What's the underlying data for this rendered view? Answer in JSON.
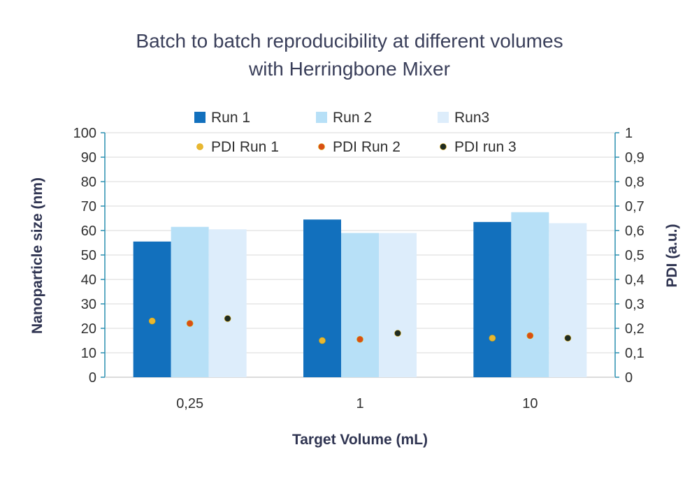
{
  "chart_data": {
    "type": "bar",
    "title_line1": "Batch to batch reproducibility at different volumes",
    "title_line2": "with Herringbone Mixer",
    "xlabel": "Target Volume (mL)",
    "ylabel": "Nanoparticle size (nm)",
    "y2label": "PDI (a.u.)",
    "categories": [
      "0,25",
      "1",
      "10"
    ],
    "ylim": [
      0,
      100
    ],
    "y2lim": [
      0,
      1
    ],
    "yticks": [
      "0",
      "10",
      "20",
      "30",
      "40",
      "50",
      "60",
      "70",
      "80",
      "90",
      "100"
    ],
    "y2ticks": [
      "0",
      "0,1",
      "0,2",
      "0,3",
      "0,4",
      "0,5",
      "0,6",
      "0,7",
      "0,8",
      "0,9",
      "1"
    ],
    "grid": true,
    "legend_position": "top",
    "series": [
      {
        "name": "Run 1",
        "kind": "bar",
        "axis": "left",
        "color": "#1270bd",
        "values": [
          55.5,
          64.5,
          63.5
        ]
      },
      {
        "name": "Run 2",
        "kind": "bar",
        "axis": "left",
        "color": "#b7e0f7",
        "values": [
          61.5,
          59,
          67.5
        ]
      },
      {
        "name": "Run3",
        "kind": "bar",
        "axis": "left",
        "color": "#ddedfb",
        "values": [
          60.5,
          59,
          63
        ]
      },
      {
        "name": "PDI Run 1",
        "kind": "scatter",
        "axis": "right",
        "color": "#e9b730",
        "values": [
          0.23,
          0.15,
          0.16
        ]
      },
      {
        "name": "PDI Run 2",
        "kind": "scatter",
        "axis": "right",
        "color": "#d94f14",
        "values": [
          0.22,
          0.155,
          0.17
        ]
      },
      {
        "name": "PDI run 3",
        "kind": "scatter",
        "axis": "right",
        "color": "#1e2b22",
        "values": [
          0.24,
          0.18,
          0.16
        ]
      }
    ]
  }
}
